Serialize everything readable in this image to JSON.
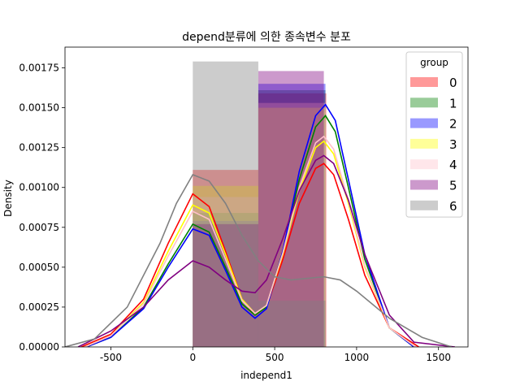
{
  "chart_data": {
    "type": "histogram+kde",
    "title": "depend분류에 의한 종속변수 분포",
    "xlabel": "independ1",
    "ylabel": "Density",
    "xlim": [
      -780,
      1680
    ],
    "ylim": [
      0,
      0.00188
    ],
    "x_ticks": [
      -500,
      0,
      500,
      1000,
      1500
    ],
    "y_ticks": [
      0,
      0.00025,
      0.0005,
      0.00075,
      0.001,
      0.00125,
      0.0015,
      0.00175
    ],
    "x_tick_labels": [
      "-500",
      "0",
      "500",
      "1000",
      "1500"
    ],
    "y_tick_labels": [
      "0.00000",
      "0.00025",
      "0.00050",
      "0.00075",
      "0.00100",
      "0.00125",
      "0.00150",
      "0.00175"
    ],
    "legend": {
      "title": "group",
      "location": "upper right"
    },
    "series": [
      {
        "name": "0",
        "color": "#ff0000",
        "bins": [
          [
            0,
            400,
            0.00111
          ],
          [
            400,
            815,
            0.00159
          ]
        ],
        "kde": [
          [
            -680,
            0.0
          ],
          [
            -500,
            8e-05
          ],
          [
            -300,
            0.0003
          ],
          [
            -150,
            0.00065
          ],
          [
            0,
            0.00096
          ],
          [
            100,
            0.00088
          ],
          [
            200,
            0.0006
          ],
          [
            300,
            0.0003
          ],
          [
            380,
            0.0002
          ],
          [
            450,
            0.00025
          ],
          [
            550,
            0.00055
          ],
          [
            650,
            0.0009
          ],
          [
            750,
            0.00112
          ],
          [
            800,
            0.00115
          ],
          [
            860,
            0.00108
          ],
          [
            950,
            0.0008
          ],
          [
            1050,
            0.00045
          ],
          [
            1200,
            0.00012
          ],
          [
            1380,
            0.0
          ]
        ]
      },
      {
        "name": "1",
        "color": "#008000",
        "bins": [
          [
            0,
            400,
            0.00084
          ],
          [
            400,
            810,
            0.00161
          ]
        ],
        "kde": [
          [
            -650,
            0.0
          ],
          [
            -500,
            6e-05
          ],
          [
            -300,
            0.00025
          ],
          [
            -150,
            0.00052
          ],
          [
            0,
            0.00077
          ],
          [
            100,
            0.00072
          ],
          [
            200,
            0.0005
          ],
          [
            300,
            0.00027
          ],
          [
            380,
            0.0002
          ],
          [
            450,
            0.00025
          ],
          [
            550,
            0.0006
          ],
          [
            650,
            0.00105
          ],
          [
            750,
            0.00138
          ],
          [
            810,
            0.00145
          ],
          [
            870,
            0.00135
          ],
          [
            950,
            0.001
          ],
          [
            1050,
            0.00055
          ],
          [
            1200,
            0.00012
          ],
          [
            1350,
            0.0
          ]
        ]
      },
      {
        "name": "2",
        "color": "#0000ff",
        "bins": [
          [
            0,
            400,
            0.00079
          ],
          [
            400,
            810,
            0.00165
          ]
        ],
        "kde": [
          [
            -650,
            0.0
          ],
          [
            -500,
            6e-05
          ],
          [
            -300,
            0.00024
          ],
          [
            -150,
            0.0005
          ],
          [
            0,
            0.00074
          ],
          [
            100,
            0.0007
          ],
          [
            200,
            0.00048
          ],
          [
            300,
            0.00025
          ],
          [
            380,
            0.00018
          ],
          [
            450,
            0.00024
          ],
          [
            550,
            0.0006
          ],
          [
            650,
            0.0011
          ],
          [
            750,
            0.00145
          ],
          [
            810,
            0.00152
          ],
          [
            870,
            0.00142
          ],
          [
            950,
            0.00105
          ],
          [
            1050,
            0.00058
          ],
          [
            1200,
            0.00012
          ],
          [
            1350,
            0.0
          ]
        ]
      },
      {
        "name": "3",
        "color": "#ffff00",
        "bins": [
          [
            0,
            400,
            0.00101
          ],
          [
            400,
            810,
            0.0015
          ]
        ],
        "kde": [
          [
            -660,
            0.0
          ],
          [
            -500,
            7e-05
          ],
          [
            -300,
            0.00028
          ],
          [
            -150,
            0.0006
          ],
          [
            0,
            0.00089
          ],
          [
            100,
            0.00084
          ],
          [
            200,
            0.00058
          ],
          [
            300,
            0.0003
          ],
          [
            380,
            0.00021
          ],
          [
            450,
            0.00026
          ],
          [
            550,
            0.00058
          ],
          [
            650,
            0.00098
          ],
          [
            750,
            0.00125
          ],
          [
            800,
            0.00129
          ],
          [
            860,
            0.00121
          ],
          [
            950,
            0.0009
          ],
          [
            1050,
            0.0005
          ],
          [
            1200,
            0.00012
          ],
          [
            1360,
            0.0
          ]
        ]
      },
      {
        "name": "4",
        "color": "#ffc0cb",
        "bins": [
          [
            0,
            400,
            0.00094
          ],
          [
            400,
            810,
            0.00153
          ]
        ],
        "kde": [
          [
            -660,
            0.0
          ],
          [
            -500,
            7e-05
          ],
          [
            -300,
            0.00027
          ],
          [
            -150,
            0.00057
          ],
          [
            0,
            0.00085
          ],
          [
            100,
            0.0008
          ],
          [
            200,
            0.00055
          ],
          [
            300,
            0.00029
          ],
          [
            380,
            0.00021
          ],
          [
            450,
            0.00026
          ],
          [
            550,
            0.00059
          ],
          [
            650,
            0.001
          ],
          [
            750,
            0.00128
          ],
          [
            800,
            0.00132
          ],
          [
            860,
            0.00124
          ],
          [
            950,
            0.00092
          ],
          [
            1050,
            0.00051
          ],
          [
            1200,
            0.00012
          ],
          [
            1360,
            0.0
          ]
        ]
      },
      {
        "name": "5",
        "color": "#800080",
        "bins": [
          [
            0,
            400,
            0.00077
          ],
          [
            400,
            800,
            0.00173
          ]
        ],
        "kde": [
          [
            -700,
            0.0
          ],
          [
            -500,
            0.0001
          ],
          [
            -300,
            0.00025
          ],
          [
            -150,
            0.00042
          ],
          [
            0,
            0.00054
          ],
          [
            100,
            0.0005
          ],
          [
            200,
            0.00042
          ],
          [
            300,
            0.00035
          ],
          [
            380,
            0.00034
          ],
          [
            450,
            0.00042
          ],
          [
            550,
            0.00068
          ],
          [
            650,
            0.00098
          ],
          [
            750,
            0.00117
          ],
          [
            800,
            0.0012
          ],
          [
            860,
            0.00115
          ],
          [
            950,
            0.00092
          ],
          [
            1050,
            0.00058
          ],
          [
            1200,
            0.0002
          ],
          [
            1350,
            3e-05
          ],
          [
            1600,
            0.0
          ]
        ]
      },
      {
        "name": "6",
        "color": "#808080",
        "bins": [
          [
            0,
            400,
            0.00179
          ],
          [
            400,
            810,
            0.00029
          ]
        ],
        "kde": [
          [
            -780,
            0.0
          ],
          [
            -600,
            5e-05
          ],
          [
            -400,
            0.00025
          ],
          [
            -200,
            0.00065
          ],
          [
            -100,
            0.0009
          ],
          [
            0,
            0.00108
          ],
          [
            100,
            0.00104
          ],
          [
            200,
            0.0009
          ],
          [
            300,
            0.0007
          ],
          [
            400,
            0.00054
          ],
          [
            500,
            0.00044
          ],
          [
            600,
            0.00042
          ],
          [
            700,
            0.00043
          ],
          [
            800,
            0.00044
          ],
          [
            900,
            0.00042
          ],
          [
            1000,
            0.00035
          ],
          [
            1200,
            0.00018
          ],
          [
            1400,
            6e-05
          ],
          [
            1580,
            0.0
          ]
        ]
      }
    ]
  }
}
